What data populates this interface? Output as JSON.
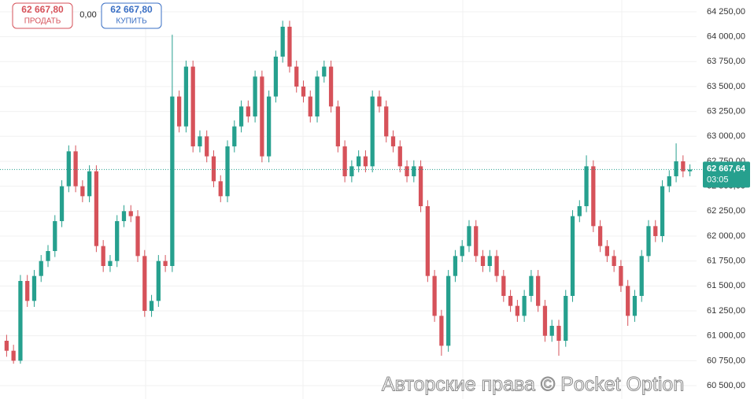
{
  "trade_panel": {
    "sell_price": "62 667,80",
    "sell_label": "ПРОДАТЬ",
    "spread": "0,00",
    "buy_price": "62 667,80",
    "buy_label": "КУПИТЬ"
  },
  "watermark": "Авторские права © Pocket Option",
  "chart_data": {
    "type": "candlestick",
    "up_color": "#26a08e",
    "down_color": "#d6525a",
    "grid": true,
    "ylim": [
      60366,
      64368
    ],
    "yticks": [
      {
        "value": 60500,
        "label": "60 500,00"
      },
      {
        "value": 60750,
        "label": "60 750,00"
      },
      {
        "value": 61000,
        "label": "61 000,00"
      },
      {
        "value": 61250,
        "label": "61 250,00"
      },
      {
        "value": 61500,
        "label": "61 500,00"
      },
      {
        "value": 61750,
        "label": "61 750,00"
      },
      {
        "value": 62000,
        "label": "62 000,00"
      },
      {
        "value": 62250,
        "label": "62 250,00"
      },
      {
        "value": 62500,
        "label": "62 500,00"
      },
      {
        "value": 62750,
        "label": "62 750,00"
      },
      {
        "value": 63000,
        "label": "63 000,00"
      },
      {
        "value": 63250,
        "label": "63 250,00"
      },
      {
        "value": 63500,
        "label": "63 500,00"
      },
      {
        "value": 63750,
        "label": "63 750,00"
      },
      {
        "value": 64000,
        "label": "64 000,00"
      },
      {
        "value": 64250,
        "label": "64 250,00"
      }
    ],
    "current_price": {
      "value": 62667.64,
      "label": "62 667,64"
    },
    "timer": "03:05",
    "open": [
      60950,
      60850,
      60750,
      61550,
      61350,
      61600,
      61750,
      61850,
      62150,
      62500,
      62850,
      62500,
      62400,
      62650,
      61900,
      61700,
      61750,
      62150,
      62250,
      62200,
      61800,
      61250,
      61350,
      61750,
      61700,
      63400,
      63100,
      63700,
      62900,
      63000,
      62800,
      62550,
      62400,
      62900,
      63100,
      63300,
      63200,
      63600,
      62800,
      63400,
      63800,
      64100,
      63700,
      63500,
      63400,
      63200,
      63600,
      63700,
      63300,
      62900,
      62600,
      62700,
      62800,
      62700,
      63400,
      63300,
      63000,
      62900,
      62700,
      62600,
      62700,
      62300,
      61600,
      61200,
      60900,
      61600,
      61800,
      61900,
      62100,
      61800,
      61700,
      61800,
      61600,
      61400,
      61300,
      61200,
      61400,
      61600,
      61300,
      61000,
      61100,
      60950,
      61400,
      62200,
      62300,
      62700,
      62100,
      61900,
      61800,
      61700,
      61500,
      61200,
      61400,
      61800,
      62100,
      62000,
      62500,
      62600,
      62750,
      62650
    ],
    "high": [
      61010,
      60910,
      61610,
      61610,
      61660,
      61810,
      61910,
      62210,
      62560,
      62910,
      62910,
      62560,
      62710,
      62710,
      61960,
      61810,
      62210,
      62310,
      62310,
      62260,
      61860,
      61410,
      61810,
      61810,
      64020,
      63460,
      63760,
      63760,
      63060,
      63060,
      62860,
      62610,
      62960,
      63160,
      63360,
      63360,
      63660,
      63660,
      63460,
      63860,
      64160,
      64160,
      63760,
      63560,
      63460,
      63660,
      63760,
      63760,
      63360,
      62960,
      62760,
      62860,
      62860,
      63460,
      63460,
      63360,
      63060,
      62960,
      62760,
      62760,
      62760,
      62360,
      61660,
      61260,
      61660,
      61860,
      61960,
      62160,
      62160,
      61860,
      61860,
      61860,
      61660,
      61460,
      61360,
      61460,
      61660,
      61660,
      61360,
      61160,
      61160,
      61460,
      62260,
      62360,
      62810,
      62760,
      62160,
      61960,
      61860,
      61760,
      61560,
      61460,
      61860,
      62160,
      62160,
      62560,
      62660,
      62930,
      62810,
      62720
    ],
    "low": [
      60790,
      60720,
      60720,
      61290,
      61290,
      61540,
      61690,
      61790,
      62090,
      62440,
      62440,
      62340,
      62340,
      61840,
      61640,
      61640,
      61690,
      62090,
      62140,
      61740,
      61190,
      61190,
      61290,
      61640,
      61640,
      63040,
      63040,
      62840,
      62840,
      62740,
      62490,
      62340,
      62340,
      62840,
      63040,
      63140,
      63140,
      62740,
      62740,
      63340,
      63740,
      63640,
      63440,
      63340,
      63140,
      63140,
      63540,
      63240,
      62840,
      62540,
      62540,
      62640,
      62640,
      62640,
      63240,
      62940,
      62840,
      62640,
      62540,
      62540,
      62240,
      61540,
      61140,
      60800,
      60840,
      61540,
      61740,
      61840,
      61740,
      61640,
      61640,
      61540,
      61340,
      61240,
      61140,
      61140,
      61340,
      61240,
      60940,
      60940,
      60800,
      60890,
      61340,
      62140,
      62240,
      62040,
      61840,
      61740,
      61640,
      61440,
      61100,
      61140,
      61340,
      61740,
      61940,
      61940,
      62440,
      62540,
      62590,
      62600
    ],
    "close": [
      60850,
      60750,
      61550,
      61350,
      61600,
      61750,
      61850,
      62150,
      62500,
      62850,
      62500,
      62400,
      62650,
      61900,
      61700,
      61750,
      62150,
      62250,
      62200,
      61800,
      61250,
      61350,
      61750,
      61700,
      63400,
      63100,
      63700,
      62900,
      63000,
      62800,
      62550,
      62400,
      62900,
      63100,
      63300,
      63200,
      63600,
      62800,
      63400,
      63800,
      64100,
      63700,
      63500,
      63400,
      63200,
      63600,
      63700,
      63300,
      62900,
      62600,
      62700,
      62800,
      62700,
      63400,
      63300,
      63000,
      62900,
      62700,
      62600,
      62700,
      62300,
      61600,
      61200,
      60900,
      61600,
      61800,
      61900,
      62100,
      61800,
      61700,
      61800,
      61600,
      61400,
      61300,
      61200,
      61400,
      61600,
      61300,
      61000,
      61100,
      60950,
      61400,
      62200,
      62300,
      62700,
      62100,
      61900,
      61800,
      61700,
      61500,
      61200,
      61400,
      61800,
      62100,
      62000,
      62500,
      62600,
      62750,
      62650,
      62667.64
    ]
  }
}
